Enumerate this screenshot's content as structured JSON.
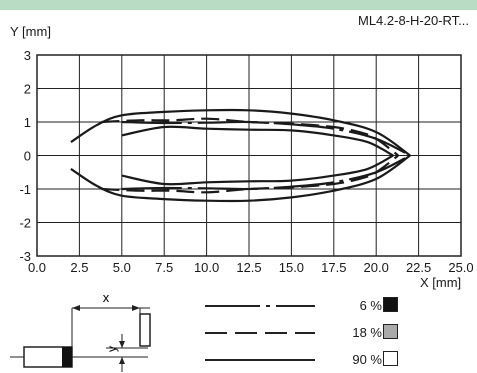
{
  "header": {
    "model": "ML4.2-8-H-20-RT..."
  },
  "chart_data": {
    "type": "line",
    "xlabel": "X [mm]",
    "ylabel": "Y [mm]",
    "xlim": [
      0,
      25
    ],
    "ylim": [
      -3,
      3
    ],
    "x_ticks": [
      "0.0",
      "2.5",
      "5.0",
      "7.5",
      "10.0",
      "12.5",
      "15.0",
      "17.5",
      "20.0",
      "22.5",
      "25.0"
    ],
    "y_ticks": [
      "3",
      "2",
      "1",
      "0",
      "-1",
      "-2",
      "-3"
    ],
    "grid": true,
    "series": [
      {
        "name": "6 %",
        "style": "dash-dot",
        "swatch_color": "#111111",
        "upper": [
          [
            5.0,
            1.0
          ],
          [
            7.5,
            0.97
          ],
          [
            10.0,
            0.98
          ],
          [
            12.5,
            1.0
          ],
          [
            15.0,
            0.93
          ],
          [
            17.5,
            0.8
          ],
          [
            20.0,
            0.5
          ],
          [
            22.0,
            0.0
          ]
        ],
        "lower": [
          [
            5.0,
            -1.0
          ],
          [
            7.5,
            -0.97
          ],
          [
            10.0,
            -0.98
          ],
          [
            12.5,
            -1.0
          ],
          [
            15.0,
            -0.93
          ],
          [
            17.5,
            -0.8
          ],
          [
            20.0,
            -0.5
          ],
          [
            22.0,
            0.0
          ]
        ]
      },
      {
        "name": "18 %",
        "style": "dashed",
        "swatch_color": "#aaaaaa",
        "upper": [
          [
            3.8,
            1.0
          ],
          [
            6.0,
            1.05
          ],
          [
            8.0,
            1.05
          ],
          [
            10.0,
            1.1
          ],
          [
            12.5,
            1.0
          ],
          [
            15.0,
            0.95
          ],
          [
            17.5,
            0.85
          ],
          [
            19.0,
            0.7
          ],
          [
            20.0,
            0.5
          ],
          [
            21.3,
            0.0
          ]
        ],
        "lower": [
          [
            3.8,
            -1.0
          ],
          [
            6.0,
            -1.05
          ],
          [
            8.0,
            -1.05
          ],
          [
            10.0,
            -1.1
          ],
          [
            12.5,
            -1.0
          ],
          [
            15.0,
            -0.95
          ],
          [
            17.5,
            -0.85
          ],
          [
            19.0,
            -0.7
          ],
          [
            20.0,
            -0.5
          ],
          [
            21.3,
            0.0
          ]
        ]
      },
      {
        "name": "90 %",
        "style": "solid",
        "swatch_color": "#ffffff",
        "upper": [
          [
            2.0,
            0.4
          ],
          [
            3.5,
            0.9
          ],
          [
            5.0,
            1.2
          ],
          [
            7.5,
            1.3
          ],
          [
            10.0,
            1.35
          ],
          [
            12.5,
            1.35
          ],
          [
            15.0,
            1.25
          ],
          [
            17.5,
            1.05
          ],
          [
            20.0,
            0.7
          ],
          [
            22.0,
            0.0
          ]
        ],
        "lower": [
          [
            2.0,
            -0.4
          ],
          [
            3.5,
            -0.9
          ],
          [
            5.0,
            -1.2
          ],
          [
            7.5,
            -1.3
          ],
          [
            10.0,
            -1.35
          ],
          [
            12.5,
            -1.35
          ],
          [
            15.0,
            -1.25
          ],
          [
            17.5,
            -1.05
          ],
          [
            20.0,
            -0.7
          ],
          [
            22.0,
            0.0
          ]
        ],
        "inner_upper": [
          [
            5.0,
            0.6
          ],
          [
            7.5,
            0.85
          ],
          [
            10.0,
            0.8
          ],
          [
            12.5,
            0.77
          ],
          [
            15.0,
            0.75
          ],
          [
            17.5,
            0.6
          ],
          [
            19.5,
            0.4
          ],
          [
            21.0,
            0.0
          ]
        ],
        "inner_lower": [
          [
            5.0,
            -0.6
          ],
          [
            7.5,
            -0.85
          ],
          [
            10.0,
            -0.8
          ],
          [
            12.5,
            -0.77
          ],
          [
            15.0,
            -0.75
          ],
          [
            17.5,
            -0.6
          ],
          [
            19.5,
            -0.4
          ],
          [
            21.0,
            0.0
          ]
        ]
      }
    ]
  },
  "diagram": {
    "x_label": "x",
    "y_label": "y"
  }
}
